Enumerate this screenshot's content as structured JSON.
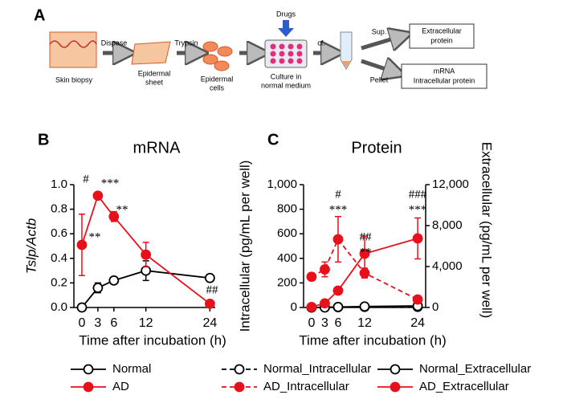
{
  "panel_a": {
    "label": "A",
    "skin": "Skin biopsy",
    "dispase": "Dispase",
    "sheet": [
      "Epidermal",
      "sheet"
    ],
    "trypsin": "Trypsin",
    "cells": [
      "Epidermal",
      "cells"
    ],
    "drugs": "Drugs",
    "culture": [
      "Culture in",
      "normal medium"
    ],
    "cf": "cf.",
    "sup": "Sup.",
    "pellet": "Pellet",
    "extra_box": [
      "Extracellular",
      "protein"
    ],
    "mrna_box": [
      "mRNA",
      "Intracellular protein"
    ]
  },
  "chart_data": [
    {
      "type": "line",
      "panel": "B",
      "title": "mRNA",
      "xlabel": "Time after incubation (h)",
      "ylabel": "Tslp/Actb",
      "x": [
        0,
        3,
        6,
        12,
        24
      ],
      "xlim": [
        -1.5,
        25
      ],
      "xticks": [
        0,
        3,
        6,
        12,
        24
      ],
      "ylim": [
        0,
        1
      ],
      "yticks": [
        {
          "value": 0,
          "label": "0.0"
        },
        0.2,
        0.4,
        0.6,
        0.8,
        {
          "value": 1,
          "label": "1.0"
        }
      ],
      "series": [
        {
          "name": "Normal",
          "color": "#000000",
          "fill": "#ffffff",
          "dashed": false,
          "values": [
            0,
            0.16,
            0.22,
            0.3,
            0.24
          ],
          "errors": [
            0,
            0.04,
            0.01,
            0.08,
            0.01
          ]
        },
        {
          "name": "AD",
          "color": "#e8101a",
          "fill": "#e8101a",
          "dashed": false,
          "values": [
            0.51,
            0.91,
            0.74,
            0.43,
            0.03
          ],
          "errors": [
            0.25,
            0.01,
            0.04,
            0.1,
            0.01
          ]
        }
      ],
      "annotations": [
        "#",
        "***",
        "**",
        "**",
        "##"
      ]
    },
    {
      "type": "line",
      "panel": "C",
      "title": "Protein",
      "xlabel": "Time after incubation (h)",
      "ylabel": "Intracellular (pg/mL per well)",
      "y2label": "Extracellular (pg/mL per well)",
      "x": [
        0,
        3,
        6,
        12,
        24
      ],
      "xlim": [
        -1.8,
        25.8
      ],
      "xticks": [
        0,
        3,
        6,
        12,
        24
      ],
      "ylim": [
        0,
        1000
      ],
      "yticks": [
        0,
        200,
        400,
        600,
        800,
        {
          "value": 1000,
          "label": "1,000"
        }
      ],
      "y2lim": [
        0,
        12000
      ],
      "y2ticks": [
        0,
        {
          "value": 4000,
          "label": "4,000"
        },
        {
          "value": 8000,
          "label": "8,000"
        },
        {
          "value": 12000,
          "label": "12,000"
        }
      ],
      "series": [
        {
          "name": "Normal_Intracellular",
          "color": "#000000",
          "fill": "#ffffff",
          "dashed": true,
          "values": [
            0,
            2,
            3,
            5,
            5
          ],
          "errors": [
            0,
            1,
            1,
            2,
            2
          ]
        },
        {
          "name": "Normal_Extracellular",
          "color": "#000000",
          "fill": "#ffffff",
          "dashed": false,
          "axis": "y2",
          "values": [
            0,
            0,
            50,
            100,
            150
          ],
          "errors": [
            0,
            0,
            10,
            20,
            30
          ]
        },
        {
          "name": "AD_Intracellular",
          "color": "#e8101a",
          "fill": "#e8101a",
          "dashed": true,
          "values": [
            250,
            310,
            555,
            280,
            65
          ],
          "errors": [
            30,
            60,
            185,
            40,
            10
          ]
        },
        {
          "name": "AD_Extracellular",
          "color": "#e8101a",
          "fill": "#e8101a",
          "dashed": false,
          "axis": "y2",
          "values": [
            50,
            400,
            1650,
            5250,
            6750
          ],
          "errors": [
            20,
            100,
            200,
            1700,
            2000
          ]
        }
      ],
      "annotations": [
        "#",
        "***",
        "##",
        "**",
        "###",
        "***"
      ]
    }
  ]
}
